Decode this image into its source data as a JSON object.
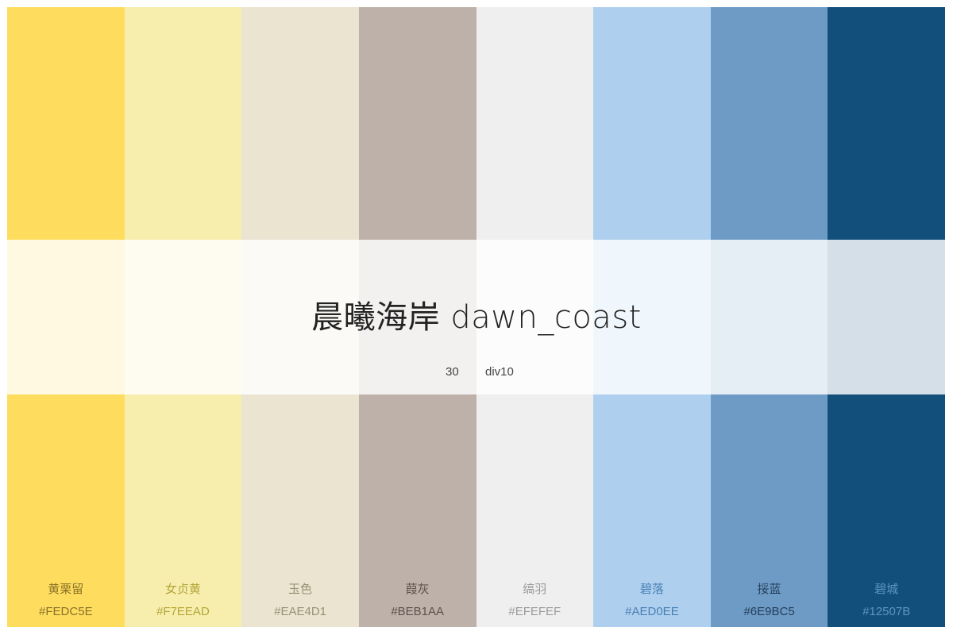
{
  "palette": {
    "title": "晨曦海岸 dawn_coast",
    "count": "30",
    "type": "div10",
    "swatches": [
      {
        "name": "黄栗留",
        "hex": "#FEDC5E",
        "color": "#FEDC5E",
        "text_color": "#8a7228"
      },
      {
        "name": "女贞黄",
        "hex": "#F7EEAD",
        "color": "#F7EEAD",
        "text_color": "#b5a43a"
      },
      {
        "name": "玉色",
        "hex": "#EAE4D1",
        "color": "#EAE4D1",
        "text_color": "#9a8f72"
      },
      {
        "name": "葭灰",
        "hex": "#BEB1AA",
        "color": "#BEB1AA",
        "text_color": "#5e504a"
      },
      {
        "name": "缟羽",
        "hex": "#EFEFEF",
        "color": "#EFEFEF",
        "text_color": "#9a9a9a"
      },
      {
        "name": "碧落",
        "hex": "#AED0EE",
        "color": "#AED0EE",
        "text_color": "#4a7fb5"
      },
      {
        "name": "挼蓝",
        "hex": "#6E9BC5",
        "color": "#6E9BC5",
        "text_color": "#243d5c"
      },
      {
        "name": "碧城",
        "hex": "#12507B",
        "color": "#12507B",
        "text_color": "#5b93c4"
      }
    ]
  }
}
